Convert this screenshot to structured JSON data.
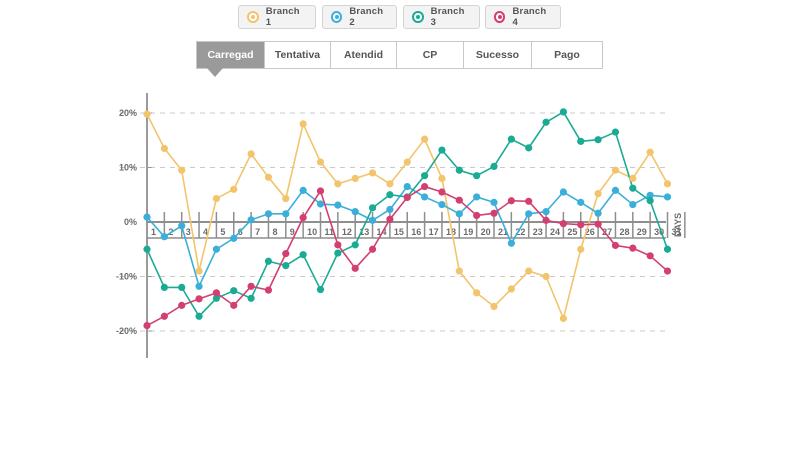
{
  "legend": [
    {
      "label": "Branch 1",
      "color": "#f2c46c"
    },
    {
      "label": "Branch 2",
      "color": "#3aafda"
    },
    {
      "label": "Branch 3",
      "color": "#1aab94"
    },
    {
      "label": "Branch 4",
      "color": "#d43f72"
    }
  ],
  "tabs": [
    {
      "label": "Carregad",
      "active": true
    },
    {
      "label": "Tentativa",
      "active": false
    },
    {
      "label": "Atendid",
      "active": false
    },
    {
      "label": "CP",
      "active": false
    },
    {
      "label": "Sucesso",
      "active": false
    },
    {
      "label": "Pago",
      "active": false
    }
  ],
  "chart_data": {
    "type": "line",
    "xlabel": "DAYS",
    "ylabel": "",
    "ylim": [
      -20,
      20
    ],
    "ytick_labels": [
      "20%",
      "10%",
      "0%",
      "-10%",
      "-20%"
    ],
    "ytick_values": [
      20,
      10,
      0,
      -10,
      -20
    ],
    "grid": "dashed horizontal",
    "legend_position": "top",
    "x": [
      1,
      2,
      3,
      4,
      5,
      6,
      7,
      8,
      9,
      10,
      11,
      12,
      13,
      14,
      15,
      16,
      17,
      18,
      19,
      20,
      21,
      22,
      23,
      24,
      25,
      26,
      27,
      28,
      29,
      30,
      31
    ],
    "series": [
      {
        "name": "Branch 1",
        "color": "#f2c46c",
        "values": [
          19.8,
          13.5,
          9.5,
          -9,
          4.3,
          6,
          12.5,
          8.2,
          4.3,
          18,
          11,
          7,
          8,
          9,
          7,
          11,
          15.2,
          8,
          -9,
          -13,
          -15.5,
          -12.3,
          -9,
          -10,
          -17.7,
          -5,
          5.2,
          9.5,
          8,
          12.8,
          7
        ]
      },
      {
        "name": "Branch 2",
        "color": "#3aafda",
        "values": [
          0.9,
          -2.7,
          -0.7,
          -11.8,
          -5,
          -3,
          0.4,
          1.5,
          1.5,
          5.8,
          3.3,
          3.1,
          1.9,
          0.3,
          2.3,
          6.5,
          4.6,
          3.2,
          1.5,
          4.6,
          3.6,
          -3.9,
          1.5,
          1.9,
          5.5,
          3.6,
          1.6,
          5.8,
          3.2,
          4.9,
          4.6
        ]
      },
      {
        "name": "Branch 3",
        "color": "#1aab94",
        "values": [
          -5,
          -12,
          -12,
          -17.3,
          -14,
          -12.6,
          -14,
          -7.2,
          -8,
          -6,
          -12.4,
          -5.7,
          -4.2,
          2.6,
          5,
          4.6,
          8.5,
          13.2,
          9.5,
          8.5,
          10.2,
          15.2,
          13.6,
          18.3,
          20.2,
          14.8,
          15.1,
          16.5,
          6.2,
          3.9,
          -5
        ]
      },
      {
        "name": "Branch 4",
        "color": "#d43f72",
        "values": [
          -19,
          -17.3,
          -15.3,
          -14.1,
          -13,
          -15.3,
          -11.8,
          -12.5,
          -5.8,
          0.8,
          5.7,
          -4.2,
          -8.5,
          -5,
          0.5,
          4.5,
          6.5,
          5.5,
          4,
          1.2,
          1.6,
          3.9,
          3.8,
          0.3,
          -0.3,
          -0.5,
          -0.4,
          -4.3,
          -4.8,
          -6.2,
          -9
        ]
      }
    ]
  }
}
